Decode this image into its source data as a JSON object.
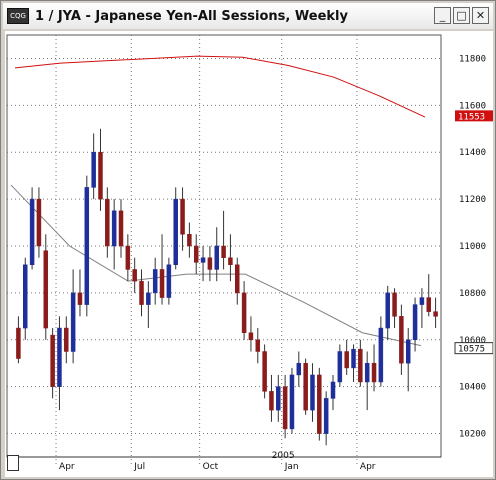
{
  "window": {
    "title": "1 / JYA - Japanese Yen-All Sessions, Weekly",
    "app_icon_text": "CQG",
    "minimize_label": "_",
    "maximize_label": "□",
    "close_label": "✕"
  },
  "chart_data": {
    "type": "candlestick",
    "y_ticks": [
      "11800",
      "11600",
      "11400",
      "11200",
      "11000",
      "10800",
      "10600",
      "10400",
      "10200"
    ],
    "x_ticks": [
      "Apr",
      "Jul",
      "Oct",
      "Jan",
      "Apr"
    ],
    "year_label": "2005",
    "last_price_label": "11553",
    "ma_label": "10575",
    "ylim": [
      10100,
      11900
    ],
    "colors": {
      "up": "#1f2f9a",
      "down": "#8a1c1c",
      "ma_fast": "#d01010",
      "ma_slow": "#808080",
      "grid": "#777777"
    },
    "candles": [
      [
        10650,
        10700,
        10500,
        10520
      ],
      [
        10650,
        10950,
        10600,
        10920
      ],
      [
        10920,
        11250,
        10900,
        11200
      ],
      [
        11200,
        11250,
        10950,
        11000
      ],
      [
        10980,
        11050,
        10600,
        10650
      ],
      [
        10620,
        10650,
        10350,
        10400
      ],
      [
        10400,
        10700,
        10300,
        10650
      ],
      [
        10650,
        10700,
        10500,
        10550
      ],
      [
        10550,
        10900,
        10500,
        10800
      ],
      [
        10800,
        10900,
        10700,
        10750
      ],
      [
        10750,
        11300,
        10700,
        11250
      ],
      [
        11250,
        11480,
        11200,
        11400
      ],
      [
        11400,
        11500,
        11150,
        11200
      ],
      [
        11200,
        11250,
        10950,
        11000
      ],
      [
        11000,
        11200,
        10900,
        11150
      ],
      [
        11150,
        11200,
        10950,
        11000
      ],
      [
        11000,
        11050,
        10850,
        10900
      ],
      [
        10900,
        10950,
        10800,
        10850
      ],
      [
        10850,
        10900,
        10700,
        10750
      ],
      [
        10750,
        10850,
        10650,
        10800
      ],
      [
        10800,
        10950,
        10750,
        10900
      ],
      [
        10900,
        11050,
        10750,
        10780
      ],
      [
        10780,
        10950,
        10750,
        10920
      ],
      [
        10920,
        11250,
        10900,
        11200
      ],
      [
        11200,
        11250,
        10980,
        11050
      ],
      [
        11050,
        11100,
        10950,
        11000
      ],
      [
        11000,
        11050,
        10880,
        10930
      ],
      [
        10930,
        11000,
        10850,
        10950
      ],
      [
        10950,
        11000,
        10850,
        10900
      ],
      [
        10900,
        11080,
        10850,
        11000
      ],
      [
        11000,
        11150,
        10900,
        10950
      ],
      [
        10950,
        11050,
        10850,
        10920
      ],
      [
        10920,
        10950,
        10750,
        10800
      ],
      [
        10800,
        10850,
        10600,
        10630
      ],
      [
        10630,
        10700,
        10550,
        10600
      ],
      [
        10600,
        10650,
        10500,
        10550
      ],
      [
        10550,
        10580,
        10350,
        10380
      ],
      [
        10380,
        10450,
        10250,
        10300
      ],
      [
        10300,
        10450,
        10250,
        10400
      ],
      [
        10400,
        10450,
        10180,
        10220
      ],
      [
        10220,
        10480,
        10200,
        10450
      ],
      [
        10450,
        10550,
        10400,
        10500
      ],
      [
        10500,
        10520,
        10280,
        10300
      ],
      [
        10300,
        10500,
        10250,
        10450
      ],
      [
        10450,
        10480,
        10170,
        10200
      ],
      [
        10200,
        10380,
        10150,
        10350
      ],
      [
        10350,
        10450,
        10300,
        10420
      ],
      [
        10420,
        10580,
        10400,
        10550
      ],
      [
        10550,
        10600,
        10450,
        10480
      ],
      [
        10480,
        10580,
        10420,
        10560
      ],
      [
        10560,
        10600,
        10400,
        10420
      ],
      [
        10420,
        10550,
        10300,
        10500
      ],
      [
        10500,
        10580,
        10380,
        10420
      ],
      [
        10420,
        10700,
        10400,
        10650
      ],
      [
        10650,
        10830,
        10600,
        10800
      ],
      [
        10800,
        10820,
        10650,
        10700
      ],
      [
        10700,
        10750,
        10450,
        10500
      ],
      [
        10500,
        10650,
        10380,
        10600
      ],
      [
        10600,
        10780,
        10550,
        10750
      ],
      [
        10750,
        10820,
        10650,
        10780
      ],
      [
        10780,
        10880,
        10700,
        10720
      ],
      [
        10720,
        10780,
        10650,
        10700
      ]
    ],
    "ma_fast": [
      11760,
      11780,
      11790,
      11800,
      11810,
      11805,
      11770,
      11720,
      11640,
      11550
    ],
    "ma_slow": [
      11260,
      11000,
      10850,
      10880,
      10880,
      10760,
      10630,
      10575
    ]
  }
}
